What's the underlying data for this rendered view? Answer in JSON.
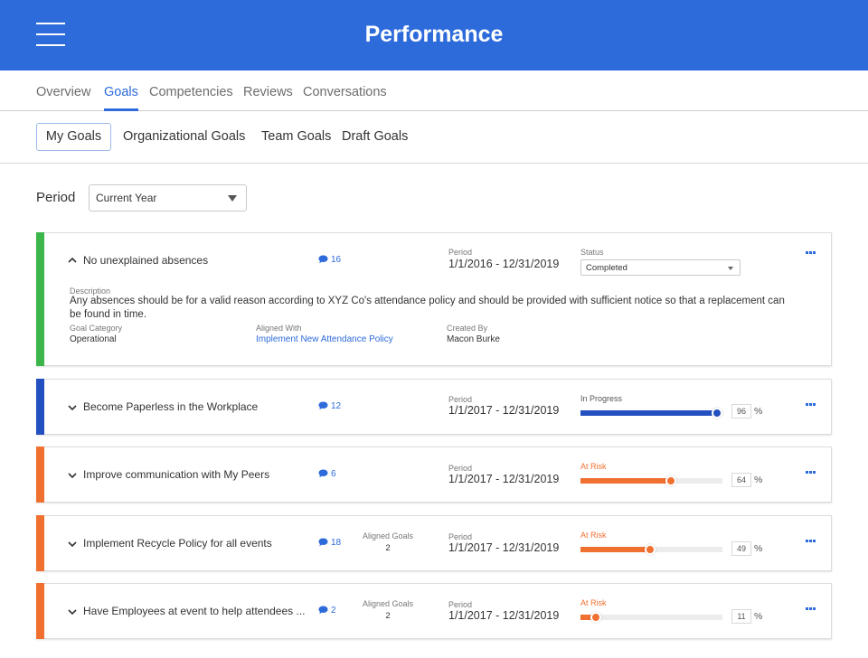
{
  "header": {
    "title": "Performance"
  },
  "main_tabs": [
    {
      "label": "Overview"
    },
    {
      "label": "Goals"
    },
    {
      "label": "Competencies"
    },
    {
      "label": "Reviews"
    },
    {
      "label": "Conversations"
    }
  ],
  "sub_tabs": [
    {
      "label": "My Goals"
    },
    {
      "label": "Organizational Goals"
    },
    {
      "label": "Team Goals"
    },
    {
      "label": "Draft Goals"
    }
  ],
  "filter": {
    "label": "Period",
    "value": "Current Year"
  },
  "colors": {
    "primary": "#2d6bdb",
    "success": "#3cb54a",
    "risk": "#f07030"
  },
  "expanded_goal": {
    "name": "No unexplained absences",
    "comments": "16",
    "period_label": "Period",
    "period": "1/1/2016 - 12/31/2019",
    "status_label": "Status",
    "status": "Completed",
    "description_label": "Description",
    "description": "Any absences should be for a valid reason according to XYZ Co's attendance policy and should be provided with sufficient notice so that a replacement can be found in time.",
    "category_label": "Goal Category",
    "category": "Operational",
    "aligned_label": "Aligned With",
    "aligned": "Implement New Attendance Policy",
    "created_label": "Created By",
    "created": "Macon Burke"
  },
  "goals": [
    {
      "name": "Become Paperless in the Workplace",
      "comments": "12",
      "period_label": "Period",
      "period": "1/1/2017 - 12/31/2019",
      "status": "In Progress",
      "progress": "96",
      "pct": "%"
    },
    {
      "name": "Improve communication with My Peers",
      "comments": "6",
      "period_label": "Period",
      "period": "1/1/2017 - 12/31/2019",
      "status": "At Risk",
      "progress": "64",
      "pct": "%"
    },
    {
      "name": "Implement Recycle Policy for all events",
      "comments": "18",
      "aligned_label": "Aligned Goals",
      "aligned_count": "2",
      "period_label": "Period",
      "period": "1/1/2017 - 12/31/2019",
      "status": "At Risk",
      "progress": "49",
      "pct": "%"
    },
    {
      "name": "Have Employees at event to help attendees ...",
      "comments": "2",
      "aligned_label": "Aligned Goals",
      "aligned_count": "2",
      "period_label": "Period",
      "period": "1/1/2017 - 12/31/2019",
      "status": "At Risk",
      "progress": "11",
      "pct": "%"
    }
  ]
}
